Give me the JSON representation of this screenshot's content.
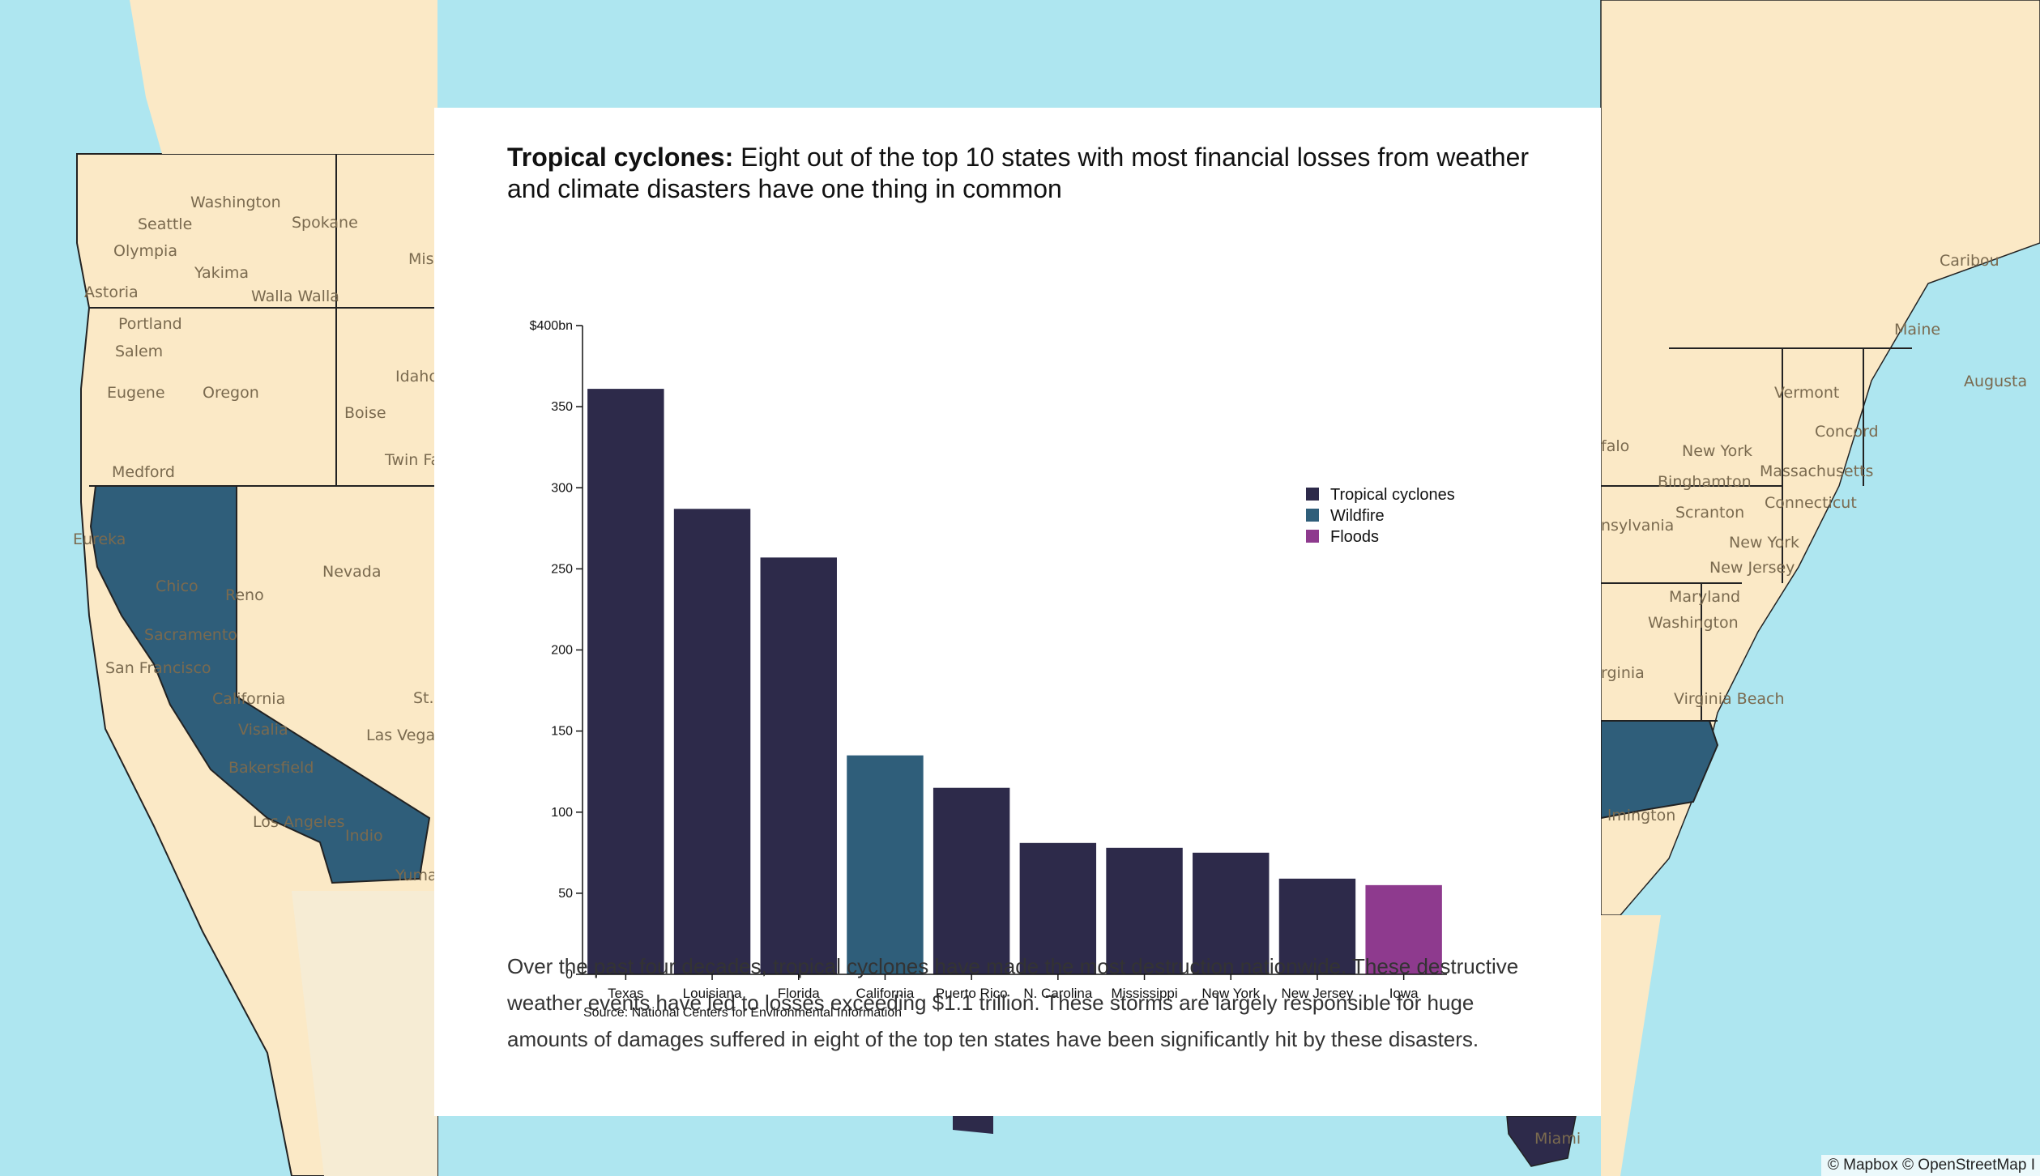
{
  "map": {
    "labels": [
      "Washington",
      "Seattle",
      "Spokane",
      "Olympia",
      "Yakima",
      "Walla Walla",
      "Astoria",
      "Portland",
      "Salem",
      "Eugene",
      "Oregon",
      "Idaho",
      "Boise",
      "Medford",
      "Twin Fa",
      "Eureka",
      "Nevada",
      "Chico",
      "Reno",
      "Sacramento",
      "San Francisco",
      "California",
      "Visalia",
      "St.",
      "Las Vegas",
      "Bakersfield",
      "Los Angeles",
      "Indio",
      "Yuma",
      "Miss",
      "Caribou",
      "Maine",
      "Augusta",
      "Vermont",
      "Concord",
      "New York",
      "falo",
      "Binghamton",
      "Massachusetts",
      "Scranton",
      "Connecticut",
      "nsylvania",
      "New York",
      "New Jersey",
      "Maryland",
      "Washington",
      "rginia",
      "Virginia Beach",
      "lmington",
      "Miami"
    ],
    "colors": {
      "ocean": "#aee6f0",
      "land": "#fbe9c6",
      "highlight": "#2f5e7a",
      "cyclone": "#2d2a4a"
    },
    "attribution": "© Mapbox © OpenStreetMap  I"
  },
  "card": {
    "title_bold": "Tropical cyclones:",
    "title_rest": " Eight out of the top 10 states with most financial losses from weather and climate disasters have one thing in common",
    "source": "Source: National Centers for Environmental Information",
    "body": "Over the past four decades, tropical cyclones have made the most destruction nationwide. These destructive weather events have led to losses exceeding $1.1 trillion. These storms are largely responsible for huge amounts of damages suffered in eight of the top ten states have been significantly hit by these disasters."
  },
  "chart_data": {
    "type": "bar",
    "title": "Tropical cyclones: Eight out of the top 10 states with most financial losses from weather and climate disasters have one thing in common",
    "categories": [
      "Texas",
      "Louisiana",
      "Florida",
      "California",
      "Puerto Rico",
      "N. Carolina",
      "Mississippi",
      "New York",
      "New Jersey",
      "Iowa"
    ],
    "values": [
      361,
      287,
      257,
      135,
      115,
      81,
      78,
      75,
      59,
      55
    ],
    "bar_types": [
      "Tropical cyclones",
      "Tropical cyclones",
      "Tropical cyclones",
      "Wildfire",
      "Tropical cyclones",
      "Tropical cyclones",
      "Tropical cyclones",
      "Tropical cyclones",
      "Tropical cyclones",
      "Floods"
    ],
    "legend": [
      {
        "name": "Tropical cyclones",
        "color": "#2d2a4a"
      },
      {
        "name": "Wildfire",
        "color": "#2f5e7a"
      },
      {
        "name": "Floods",
        "color": "#8e3a8e"
      }
    ],
    "legend_position": "top-right",
    "ylim": [
      0,
      400
    ],
    "yticks": [
      0,
      50,
      100,
      150,
      200,
      250,
      300,
      350,
      400
    ],
    "ytick_labels": [
      "0",
      "50",
      "100",
      "150",
      "200",
      "250",
      "300",
      "350",
      "$400bn"
    ],
    "grid": false
  }
}
